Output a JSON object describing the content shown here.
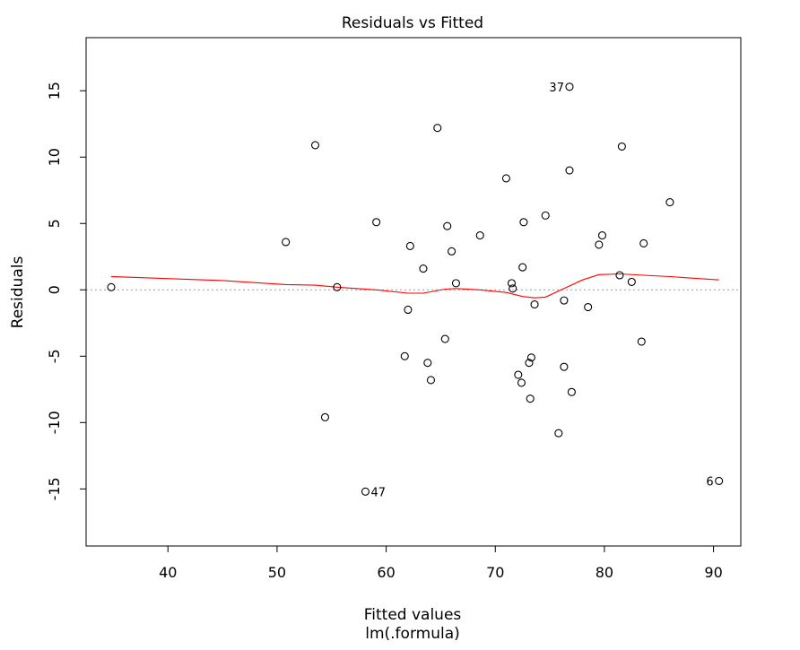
{
  "chart_data": {
    "type": "scatter",
    "title": "Residuals vs Fitted",
    "xlabel": "Fitted values",
    "sublabel": "lm(.formula)",
    "ylabel": "Residuals",
    "xlim": [
      32.5,
      92.5
    ],
    "ylim": [
      -19.3,
      19.0
    ],
    "x_ticks": [
      40,
      50,
      60,
      70,
      80,
      90
    ],
    "y_ticks": [
      -15,
      -10,
      -5,
      0,
      5,
      10,
      15
    ],
    "zero_line": 0,
    "point_style": "open-circle",
    "points": [
      {
        "x": 34.8,
        "y": 0.2
      },
      {
        "x": 50.8,
        "y": 3.6
      },
      {
        "x": 53.5,
        "y": 10.9
      },
      {
        "x": 54.4,
        "y": -9.6
      },
      {
        "x": 55.5,
        "y": 0.2
      },
      {
        "x": 58.1,
        "y": -15.2,
        "label": "47"
      },
      {
        "x": 59.1,
        "y": 5.1
      },
      {
        "x": 61.7,
        "y": -5.0
      },
      {
        "x": 62.0,
        "y": -1.5
      },
      {
        "x": 62.2,
        "y": 3.3
      },
      {
        "x": 63.4,
        "y": 1.6
      },
      {
        "x": 63.8,
        "y": -5.5
      },
      {
        "x": 64.1,
        "y": -6.8
      },
      {
        "x": 64.7,
        "y": 12.2
      },
      {
        "x": 65.4,
        "y": -3.7
      },
      {
        "x": 65.6,
        "y": 4.8
      },
      {
        "x": 66.0,
        "y": 2.9
      },
      {
        "x": 66.4,
        "y": 0.5
      },
      {
        "x": 68.6,
        "y": 4.1
      },
      {
        "x": 71.0,
        "y": 8.4
      },
      {
        "x": 71.5,
        "y": 0.5
      },
      {
        "x": 71.6,
        "y": 0.1
      },
      {
        "x": 72.1,
        "y": -6.4
      },
      {
        "x": 72.4,
        "y": -7.0
      },
      {
        "x": 72.5,
        "y": 1.7
      },
      {
        "x": 72.6,
        "y": 5.1
      },
      {
        "x": 73.1,
        "y": -5.5
      },
      {
        "x": 73.2,
        "y": -8.2
      },
      {
        "x": 73.3,
        "y": -5.1
      },
      {
        "x": 73.6,
        "y": -1.1
      },
      {
        "x": 74.6,
        "y": 5.6
      },
      {
        "x": 75.8,
        "y": -10.8
      },
      {
        "x": 76.3,
        "y": -5.8
      },
      {
        "x": 76.3,
        "y": -0.8
      },
      {
        "x": 76.8,
        "y": 9.0
      },
      {
        "x": 76.8,
        "y": 15.3,
        "label": "37"
      },
      {
        "x": 77.0,
        "y": -7.7
      },
      {
        "x": 78.5,
        "y": -1.3
      },
      {
        "x": 79.5,
        "y": 3.4
      },
      {
        "x": 79.8,
        "y": 4.1
      },
      {
        "x": 81.4,
        "y": 1.1
      },
      {
        "x": 81.6,
        "y": 10.8
      },
      {
        "x": 82.5,
        "y": 0.6
      },
      {
        "x": 83.4,
        "y": -3.9
      },
      {
        "x": 83.6,
        "y": 3.5
      },
      {
        "x": 86.0,
        "y": 6.6
      },
      {
        "x": 90.5,
        "y": -14.4,
        "label": "6"
      }
    ],
    "smoother": {
      "name": "lowess",
      "color": "#ff0000",
      "x": [
        34.8,
        45.0,
        50.8,
        53.5,
        55.5,
        59.1,
        62.0,
        63.4,
        65.4,
        66.4,
        68.6,
        71.0,
        72.5,
        73.6,
        74.6,
        76.3,
        78.0,
        79.5,
        81.4,
        83.6,
        86.0,
        90.5
      ],
      "y": [
        1.0,
        0.7,
        0.4,
        0.35,
        0.2,
        0.0,
        -0.25,
        -0.25,
        0.05,
        0.1,
        0.0,
        -0.2,
        -0.5,
        -0.6,
        -0.55,
        0.1,
        0.75,
        1.15,
        1.2,
        1.1,
        1.0,
        0.75
      ]
    },
    "colors": {
      "points": "#000000",
      "smoother": "#ff0000",
      "zero_line": "#999999"
    }
  }
}
